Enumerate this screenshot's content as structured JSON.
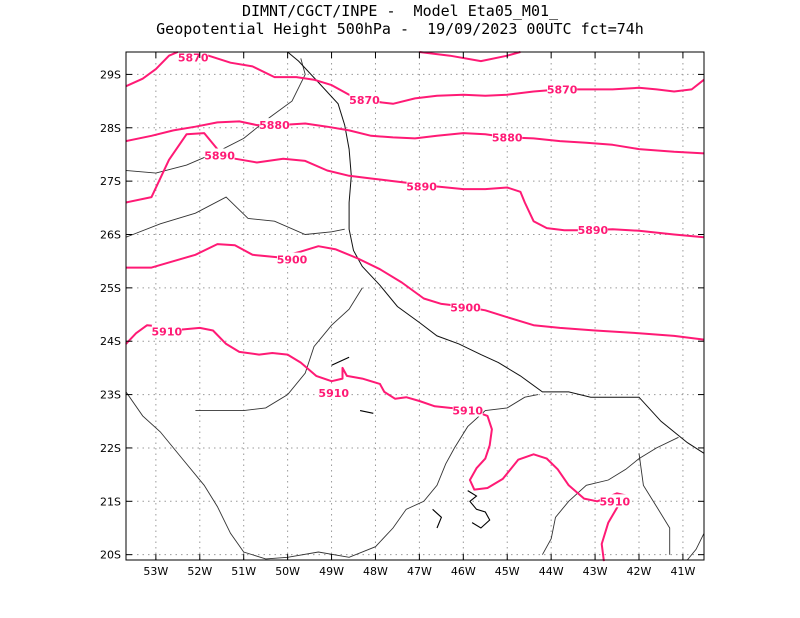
{
  "title": {
    "line1": "DIMNT/CGCT/INPE -  Model Eta05_M01_",
    "line2": "Geopotential Height 500hPa -  19/09/2023 00UTC fct=74h"
  },
  "contour_color": "#ff1a75",
  "border_color": "#333333",
  "map": {
    "lon_range": [
      -53.68,
      -40.52
    ],
    "lat_range": [
      -29.42,
      -19.9
    ],
    "lon_ticks": [
      -53,
      -52,
      -51,
      -50,
      -49,
      -48,
      -47,
      -46,
      -45,
      -44,
      -43,
      -42,
      -41
    ],
    "lon_tick_labels": [
      "53W",
      "52W",
      "51W",
      "50W",
      "49W",
      "48W",
      "47W",
      "46W",
      "45W",
      "44W",
      "43W",
      "42W",
      "41W"
    ],
    "lat_ticks": [
      -20,
      -21,
      -22,
      -23,
      -24,
      -25,
      -26,
      -27,
      -28,
      -29
    ],
    "lat_tick_labels": [
      "20S",
      "21S",
      "22S",
      "23S",
      "24S",
      "25S",
      "26S",
      "27S",
      "28S",
      "29S"
    ],
    "gridlines": "dotted"
  },
  "contours": [
    {
      "value": "5910",
      "points": [
        [
          -42.8,
          -19.88
        ],
        [
          -42.85,
          -20.2
        ],
        [
          -42.7,
          -20.6
        ],
        [
          -42.45,
          -20.95
        ],
        [
          -42.25,
          -21.1
        ],
        [
          -42.5,
          -21.15
        ],
        [
          -42.95,
          -21.0
        ],
        [
          -43.25,
          -21.05
        ],
        [
          -43.6,
          -21.3
        ],
        [
          -43.85,
          -21.6
        ],
        [
          -44.1,
          -21.8
        ],
        [
          -44.4,
          -21.88
        ],
        [
          -44.75,
          -21.78
        ],
        [
          -45.1,
          -21.42
        ],
        [
          -45.45,
          -21.25
        ],
        [
          -45.75,
          -21.22
        ],
        [
          -45.85,
          -21.4
        ],
        [
          -45.7,
          -21.62
        ],
        [
          -45.5,
          -21.8
        ],
        [
          -45.4,
          -22.05
        ],
        [
          -45.35,
          -22.35
        ],
        [
          -45.45,
          -22.6
        ],
        [
          -45.85,
          -22.72
        ],
        [
          -46.3,
          -22.75
        ],
        [
          -46.65,
          -22.78
        ],
        [
          -47.0,
          -22.88
        ],
        [
          -47.3,
          -22.95
        ],
        [
          -47.55,
          -22.92
        ],
        [
          -47.8,
          -23.05
        ],
        [
          -47.9,
          -23.2
        ],
        [
          -48.3,
          -23.3
        ],
        [
          -48.65,
          -23.35
        ],
        [
          -48.75,
          -23.5
        ],
        [
          -48.75,
          -23.3
        ],
        [
          -49.0,
          -23.25
        ],
        [
          -49.35,
          -23.35
        ],
        [
          -49.7,
          -23.6
        ],
        [
          -50.0,
          -23.75
        ],
        [
          -50.35,
          -23.78
        ],
        [
          -50.65,
          -23.75
        ],
        [
          -51.1,
          -23.8
        ],
        [
          -51.4,
          -23.95
        ],
        [
          -51.7,
          -24.2
        ],
        [
          -52.0,
          -24.25
        ],
        [
          -52.4,
          -24.22
        ],
        [
          -52.95,
          -24.28
        ],
        [
          -53.2,
          -24.3
        ],
        [
          -53.45,
          -24.15
        ],
        [
          -53.68,
          -23.95
        ]
      ]
    },
    {
      "value": "5900",
      "points": [
        [
          -40.52,
          -24.03
        ],
        [
          -41.2,
          -24.1
        ],
        [
          -42.0,
          -24.15
        ],
        [
          -43.0,
          -24.2
        ],
        [
          -43.8,
          -24.25
        ],
        [
          -44.4,
          -24.3
        ],
        [
          -45.0,
          -24.45
        ],
        [
          -45.5,
          -24.58
        ],
        [
          -46.0,
          -24.65
        ],
        [
          -46.5,
          -24.7
        ],
        [
          -46.9,
          -24.8
        ],
        [
          -47.4,
          -25.1
        ],
        [
          -47.9,
          -25.35
        ],
        [
          -48.4,
          -25.55
        ],
        [
          -48.9,
          -25.72
        ],
        [
          -49.3,
          -25.78
        ],
        [
          -49.7,
          -25.68
        ],
        [
          -50.2,
          -25.57
        ],
        [
          -50.8,
          -25.62
        ],
        [
          -51.2,
          -25.8
        ],
        [
          -51.6,
          -25.82
        ],
        [
          -52.1,
          -25.62
        ],
        [
          -52.6,
          -25.5
        ],
        [
          -53.1,
          -25.38
        ],
        [
          -53.68,
          -25.38
        ]
      ]
    },
    {
      "value": "5890",
      "points": [
        [
          -40.52,
          -25.95
        ],
        [
          -41.2,
          -26.0
        ],
        [
          -42.0,
          -26.07
        ],
        [
          -42.6,
          -26.1
        ],
        [
          -43.2,
          -26.08
        ],
        [
          -43.7,
          -26.08
        ],
        [
          -44.1,
          -26.12
        ],
        [
          -44.4,
          -26.25
        ],
        [
          -44.6,
          -26.6
        ],
        [
          -44.7,
          -26.8
        ],
        [
          -45.0,
          -26.88
        ],
        [
          -45.5,
          -26.85
        ],
        [
          -46.0,
          -26.85
        ],
        [
          -46.6,
          -26.9
        ],
        [
          -47.1,
          -26.95
        ],
        [
          -47.6,
          -27.0
        ],
        [
          -48.1,
          -27.05
        ],
        [
          -48.6,
          -27.1
        ],
        [
          -49.1,
          -27.2
        ],
        [
          -49.6,
          -27.38
        ],
        [
          -50.1,
          -27.42
        ],
        [
          -50.7,
          -27.35
        ],
        [
          -51.2,
          -27.42
        ],
        [
          -51.6,
          -27.6
        ],
        [
          -51.9,
          -27.9
        ],
        [
          -52.3,
          -27.88
        ],
        [
          -52.7,
          -27.4
        ],
        [
          -53.1,
          -26.7
        ],
        [
          -53.68,
          -26.6
        ]
      ]
    },
    {
      "value": "5880",
      "points": [
        [
          -40.52,
          -27.52
        ],
        [
          -41.2,
          -27.55
        ],
        [
          -42.0,
          -27.6
        ],
        [
          -42.6,
          -27.68
        ],
        [
          -43.2,
          -27.72
        ],
        [
          -43.8,
          -27.75
        ],
        [
          -44.4,
          -27.8
        ],
        [
          -45.0,
          -27.82
        ],
        [
          -45.5,
          -27.88
        ],
        [
          -46.0,
          -27.9
        ],
        [
          -46.6,
          -27.85
        ],
        [
          -47.1,
          -27.8
        ],
        [
          -47.6,
          -27.82
        ],
        [
          -48.1,
          -27.85
        ],
        [
          -48.6,
          -27.95
        ],
        [
          -49.1,
          -28.02
        ],
        [
          -49.6,
          -28.08
        ],
        [
          -50.2,
          -28.05
        ],
        [
          -50.7,
          -28.05
        ],
        [
          -51.1,
          -28.12
        ],
        [
          -51.6,
          -28.1
        ],
        [
          -52.1,
          -28.02
        ],
        [
          -52.6,
          -27.95
        ],
        [
          -53.1,
          -27.85
        ],
        [
          -53.68,
          -27.75
        ]
      ]
    },
    {
      "value": "5870",
      "points": [
        [
          -40.52,
          -28.9
        ],
        [
          -40.8,
          -28.72
        ],
        [
          -41.2,
          -28.68
        ],
        [
          -41.6,
          -28.72
        ],
        [
          -42.0,
          -28.75
        ],
        [
          -42.6,
          -28.72
        ],
        [
          -43.2,
          -28.72
        ],
        [
          -43.8,
          -28.72
        ],
        [
          -44.4,
          -28.68
        ],
        [
          -45.0,
          -28.62
        ],
        [
          -45.5,
          -28.6
        ],
        [
          -46.0,
          -28.62
        ],
        [
          -46.6,
          -28.6
        ],
        [
          -47.1,
          -28.55
        ],
        [
          -47.6,
          -28.45
        ],
        [
          -48.1,
          -28.5
        ],
        [
          -48.6,
          -28.62
        ],
        [
          -49.0,
          -28.8
        ],
        [
          -49.4,
          -28.9
        ],
        [
          -49.8,
          -28.95
        ],
        [
          -50.3,
          -28.95
        ],
        [
          -50.8,
          -29.15
        ],
        [
          -51.3,
          -29.22
        ],
        [
          -51.8,
          -29.35
        ],
        [
          -52.1,
          -29.42
        ]
      ]
    },
    {
      "value": "5870",
      "points": [
        [
          -53.68,
          -28.78
        ],
        [
          -53.3,
          -28.92
        ],
        [
          -53.0,
          -29.1
        ],
        [
          -52.7,
          -29.35
        ],
        [
          -52.5,
          -29.42
        ]
      ]
    },
    {
      "value": "",
      "points": [
        [
          -47.0,
          -29.42
        ],
        [
          -46.3,
          -29.35
        ],
        [
          -45.6,
          -29.25
        ],
        [
          -45.0,
          -29.35
        ],
        [
          -44.7,
          -29.42
        ]
      ]
    }
  ],
  "contour_labels": [
    {
      "text": "5910",
      "lon": -42.55,
      "lat": -21.0
    },
    {
      "text": "5910",
      "lon": -45.9,
      "lat": -22.7
    },
    {
      "text": "5910",
      "lon": -48.95,
      "lat": -23.03
    },
    {
      "text": "5910",
      "lon": -52.75,
      "lat": -24.18
    },
    {
      "text": "5900",
      "lon": -45.95,
      "lat": -24.63
    },
    {
      "text": "5900",
      "lon": -49.9,
      "lat": -25.53
    },
    {
      "text": "5890",
      "lon": -43.05,
      "lat": -26.08
    },
    {
      "text": "5890",
      "lon": -46.95,
      "lat": -26.9
    },
    {
      "text": "5890",
      "lon": -51.55,
      "lat": -27.48
    },
    {
      "text": "5880",
      "lon": -45.0,
      "lat": -27.82
    },
    {
      "text": "5880",
      "lon": -50.3,
      "lat": -28.05
    },
    {
      "text": "5870",
      "lon": -43.75,
      "lat": -28.72
    },
    {
      "text": "5870",
      "lon": -48.25,
      "lat": -28.52
    },
    {
      "text": "5870",
      "lon": -52.15,
      "lat": -29.32
    }
  ],
  "coastline": [
    [
      -40.52,
      -21.9
    ],
    [
      -40.9,
      -22.1
    ],
    [
      -41.5,
      -22.5
    ],
    [
      -42.0,
      -22.95
    ],
    [
      -42.6,
      -22.95
    ],
    [
      -43.1,
      -22.95
    ],
    [
      -43.6,
      -23.05
    ],
    [
      -44.2,
      -23.05
    ],
    [
      -44.7,
      -23.35
    ],
    [
      -45.2,
      -23.6
    ],
    [
      -45.6,
      -23.75
    ],
    [
      -46.1,
      -23.95
    ],
    [
      -46.6,
      -24.1
    ],
    [
      -47.0,
      -24.35
    ],
    [
      -47.5,
      -24.65
    ],
    [
      -47.9,
      -25.05
    ],
    [
      -48.3,
      -25.4
    ],
    [
      -48.5,
      -25.7
    ],
    [
      -48.6,
      -26.1
    ],
    [
      -48.6,
      -26.6
    ],
    [
      -48.55,
      -27.1
    ],
    [
      -48.6,
      -27.6
    ],
    [
      -48.7,
      -28.05
    ],
    [
      -48.85,
      -28.45
    ],
    [
      -49.3,
      -28.85
    ],
    [
      -49.75,
      -29.25
    ],
    [
      -50.0,
      -29.42
    ]
  ],
  "border_lines": [
    [
      [
        -53.68,
        -23.05
      ],
      [
        -53.3,
        -22.6
      ],
      [
        -52.9,
        -22.3
      ],
      [
        -52.4,
        -21.8
      ],
      [
        -51.9,
        -21.3
      ],
      [
        -51.6,
        -20.9
      ],
      [
        -51.3,
        -20.4
      ],
      [
        -51.0,
        -20.05
      ],
      [
        -50.5,
        -19.92
      ],
      [
        -50.0,
        -19.95
      ],
      [
        -49.3,
        -20.05
      ],
      [
        -48.6,
        -19.95
      ],
      [
        -48.0,
        -20.15
      ],
      [
        -47.6,
        -20.5
      ],
      [
        -47.3,
        -20.85
      ],
      [
        -46.9,
        -21.0
      ],
      [
        -46.6,
        -21.3
      ],
      [
        -46.4,
        -21.7
      ],
      [
        -46.2,
        -22.0
      ],
      [
        -45.9,
        -22.4
      ],
      [
        -45.5,
        -22.7
      ],
      [
        -45.0,
        -22.75
      ],
      [
        -44.6,
        -22.95
      ],
      [
        -44.3,
        -23.0
      ]
    ],
    [
      [
        -52.1,
        -22.7
      ],
      [
        -51.6,
        -22.7
      ],
      [
        -51.0,
        -22.7
      ],
      [
        -50.5,
        -22.75
      ],
      [
        -50.0,
        -23.0
      ],
      [
        -49.6,
        -23.4
      ],
      [
        -49.4,
        -23.9
      ],
      [
        -49.0,
        -24.3
      ],
      [
        -48.6,
        -24.6
      ],
      [
        -48.3,
        -25.0
      ]
    ],
    [
      [
        -53.68,
        -25.95
      ],
      [
        -52.9,
        -26.2
      ],
      [
        -52.1,
        -26.4
      ],
      [
        -51.4,
        -26.7
      ],
      [
        -50.9,
        -26.3
      ],
      [
        -50.3,
        -26.25
      ],
      [
        -49.6,
        -26.0
      ],
      [
        -49.0,
        -26.05
      ],
      [
        -48.7,
        -26.1
      ]
    ],
    [
      [
        -53.68,
        -27.2
      ],
      [
        -53.0,
        -27.15
      ],
      [
        -52.3,
        -27.3
      ],
      [
        -51.6,
        -27.55
      ],
      [
        -51.0,
        -27.8
      ],
      [
        -50.4,
        -28.2
      ],
      [
        -49.9,
        -28.5
      ],
      [
        -49.6,
        -29.0
      ],
      [
        -49.7,
        -29.3
      ]
    ],
    [
      [
        -44.2,
        -20.0
      ],
      [
        -44.0,
        -20.3
      ],
      [
        -43.9,
        -20.7
      ],
      [
        -43.6,
        -21.0
      ],
      [
        -43.2,
        -21.3
      ],
      [
        -42.7,
        -21.4
      ],
      [
        -42.3,
        -21.6
      ],
      [
        -42.0,
        -21.8
      ],
      [
        -41.6,
        -22.0
      ],
      [
        -41.1,
        -22.2
      ]
    ],
    [
      [
        -41.3,
        -20.0
      ],
      [
        -41.3,
        -20.5
      ],
      [
        -41.6,
        -20.9
      ],
      [
        -41.9,
        -21.3
      ],
      [
        -42.0,
        -21.9
      ]
    ],
    [
      [
        -40.52,
        -20.4
      ],
      [
        -40.7,
        -20.1
      ],
      [
        -40.9,
        -19.9
      ]
    ]
  ],
  "reservoirs": [
    [
      [
        -45.8,
        -20.6
      ],
      [
        -45.6,
        -20.5
      ],
      [
        -45.4,
        -20.65
      ],
      [
        -45.5,
        -20.8
      ],
      [
        -45.7,
        -20.85
      ],
      [
        -45.85,
        -21.0
      ],
      [
        -45.7,
        -21.1
      ],
      [
        -45.9,
        -21.2
      ]
    ],
    [
      [
        -46.6,
        -20.5
      ],
      [
        -46.5,
        -20.7
      ],
      [
        -46.7,
        -20.85
      ]
    ],
    [
      [
        -49.0,
        -23.55
      ],
      [
        -48.6,
        -23.7
      ]
    ],
    [
      [
        -48.35,
        -22.7
      ],
      [
        -48.05,
        -22.65
      ]
    ]
  ]
}
